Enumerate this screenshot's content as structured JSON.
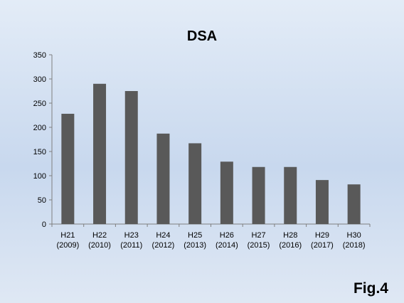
{
  "chart_data": {
    "type": "bar",
    "title": "DSA",
    "categories": [
      [
        "H21",
        "(2009)"
      ],
      [
        "H22",
        "(2010)"
      ],
      [
        "H23",
        "(2011)"
      ],
      [
        "H24",
        "(2012)"
      ],
      [
        "H25",
        "(2013)"
      ],
      [
        "H26",
        "(2014)"
      ],
      [
        "H27",
        "(2015)"
      ],
      [
        "H28",
        "(2016)"
      ],
      [
        "H29",
        "(2017)"
      ],
      [
        "H30",
        "(2018)"
      ]
    ],
    "values": [
      228,
      290,
      275,
      187,
      167,
      129,
      118,
      118,
      91,
      82
    ],
    "xlabel": "",
    "ylabel": "",
    "ylim": [
      0,
      350
    ],
    "yticks": [
      0,
      50,
      100,
      150,
      200,
      250,
      300,
      350
    ],
    "grid": false,
    "bar_color": "#595959"
  },
  "figure_label": "Fig.4"
}
